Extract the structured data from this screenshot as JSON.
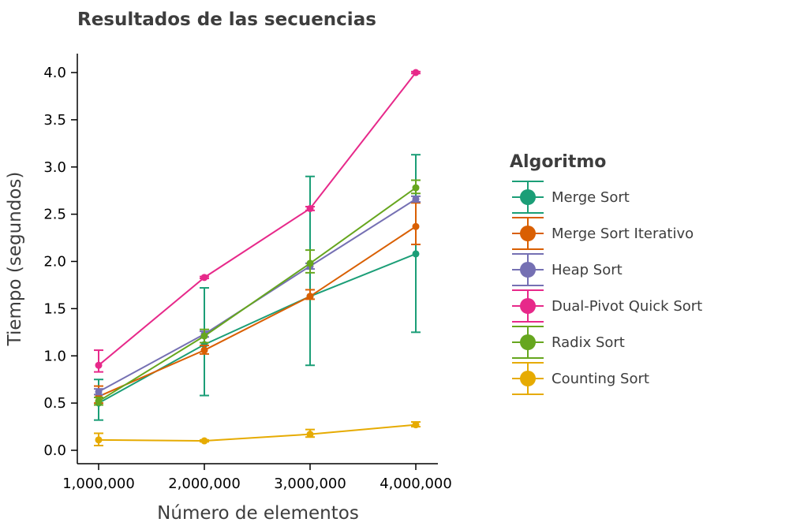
{
  "chart_data": {
    "type": "line",
    "title": "Resultados de las secuencias",
    "xlabel": "Número de elementos",
    "ylabel": "Tiempo (segundos)",
    "x": [
      1000000,
      2000000,
      3000000,
      4000000
    ],
    "x_tick_labels": [
      "1,000,000",
      "2,000,000",
      "3,000,000",
      "4,000,000"
    ],
    "y_ticks": [
      0.0,
      0.5,
      1.0,
      1.5,
      2.0,
      2.5,
      3.0,
      3.5,
      4.0
    ],
    "y_tick_labels": [
      "0.0",
      "0.5",
      "1.0",
      "1.5",
      "2.0",
      "2.5",
      "3.0",
      "3.5",
      "4.0"
    ],
    "xlim": [
      800000,
      4200000
    ],
    "ylim": [
      -0.15,
      4.2
    ],
    "grid": false,
    "legend_title": "Algoritmo",
    "legend_position": "right",
    "series": [
      {
        "name": "Merge Sort",
        "color": "#1b9e77",
        "values": [
          0.5,
          1.12,
          1.63,
          2.08
        ],
        "err_low": [
          0.32,
          0.58,
          0.9,
          1.25
        ],
        "err_high": [
          0.75,
          1.72,
          2.9,
          3.13
        ]
      },
      {
        "name": "Merge Sort Iterativo",
        "color": "#d95f02",
        "values": [
          0.57,
          1.06,
          1.63,
          2.37
        ],
        "err_low": [
          0.5,
          1.02,
          1.6,
          2.18
        ],
        "err_high": [
          0.68,
          1.11,
          1.7,
          2.62
        ]
      },
      {
        "name": "Heap Sort",
        "color": "#7570b3",
        "values": [
          0.62,
          1.23,
          1.95,
          2.66
        ],
        "err_low": [
          0.59,
          1.2,
          1.92,
          2.63
        ],
        "err_high": [
          0.65,
          1.26,
          1.98,
          2.69
        ]
      },
      {
        "name": "Dual-Pivot Quick Sort",
        "color": "#e7298a",
        "values": [
          0.9,
          1.83,
          2.56,
          4.0
        ],
        "err_low": [
          0.83,
          1.82,
          2.54,
          3.99
        ],
        "err_high": [
          1.06,
          1.84,
          2.58,
          4.01
        ]
      },
      {
        "name": "Radix Sort",
        "color": "#66a61e",
        "values": [
          0.52,
          1.21,
          1.98,
          2.78
        ],
        "err_low": [
          0.48,
          1.14,
          1.88,
          2.72
        ],
        "err_high": [
          0.56,
          1.28,
          2.12,
          2.86
        ]
      },
      {
        "name": "Counting Sort",
        "color": "#e6ab02",
        "values": [
          0.11,
          0.1,
          0.17,
          0.27
        ],
        "err_low": [
          0.05,
          0.09,
          0.14,
          0.25
        ],
        "err_high": [
          0.18,
          0.11,
          0.22,
          0.3
        ]
      }
    ]
  }
}
